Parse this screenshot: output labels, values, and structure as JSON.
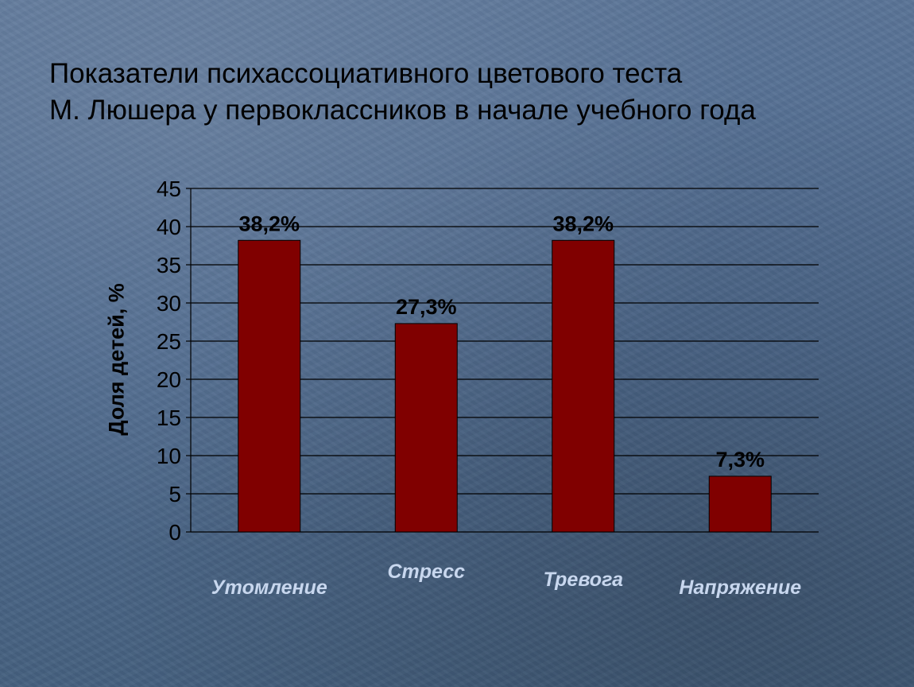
{
  "slide": {
    "title_line1": "Показатели психассоциативного цветового теста",
    "title_line2": "М. Люшера у первоклассников в начале учебного года"
  },
  "colors": {
    "bar_fill": "#800000",
    "category_label": "#c8d7ee",
    "gridline": "#000000",
    "text": "#000000"
  },
  "chart_data": {
    "type": "bar",
    "categories": [
      "Утомление",
      "Стресс",
      "Тревога",
      "Напряжение"
    ],
    "values": [
      38.2,
      27.3,
      38.2,
      7.3
    ],
    "data_labels": [
      "38,2%",
      "27,3%",
      "38,2%",
      "7,3%"
    ],
    "ylabel": "Доля детей, %",
    "xlabel": "",
    "ylim": [
      0,
      45
    ],
    "yticks": [
      0,
      5,
      10,
      15,
      20,
      25,
      30,
      35,
      40,
      45
    ],
    "grid": true,
    "legend": "none"
  }
}
